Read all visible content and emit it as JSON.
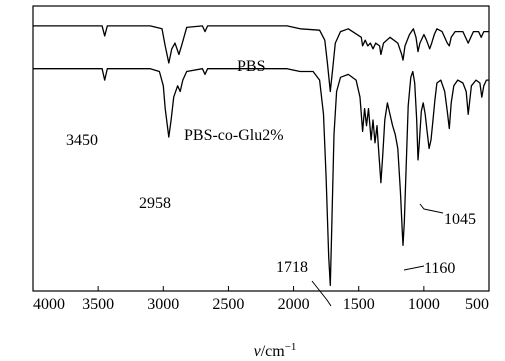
{
  "chart_data": {
    "type": "line",
    "xlabel_symbol": "ν",
    "xlabel_unit": "/cm",
    "xlabel_exponent": "−1",
    "xlim": [
      4000,
      500
    ],
    "x_reversed": true,
    "x_ticks": [
      4000,
      3500,
      3000,
      2500,
      2000,
      1500,
      1000,
      500
    ],
    "x_tick_labels": [
      "4000",
      "3500",
      "3000",
      "2500",
      "2000",
      "1500",
      "1000",
      "500"
    ],
    "ylim": [
      0,
      100
    ],
    "y_ticks_shown": false,
    "grid": false,
    "series": [
      {
        "name": "PBS",
        "points": [
          [
            4000,
            93
          ],
          [
            3650,
            93
          ],
          [
            3470,
            93
          ],
          [
            3450,
            89.5
          ],
          [
            3430,
            93
          ],
          [
            3100,
            93
          ],
          [
            3010,
            92
          ],
          [
            2985,
            86
          ],
          [
            2958,
            80
          ],
          [
            2935,
            85
          ],
          [
            2910,
            87
          ],
          [
            2880,
            83
          ],
          [
            2860,
            86
          ],
          [
            2820,
            92.5
          ],
          [
            2700,
            93
          ],
          [
            2680,
            91
          ],
          [
            2660,
            93
          ],
          [
            2050,
            93
          ],
          [
            1950,
            92
          ],
          [
            1800,
            91.5
          ],
          [
            1760,
            88
          ],
          [
            1740,
            80
          ],
          [
            1718,
            70
          ],
          [
            1700,
            78
          ],
          [
            1680,
            87
          ],
          [
            1640,
            91
          ],
          [
            1580,
            92
          ],
          [
            1480,
            89
          ],
          [
            1470,
            86
          ],
          [
            1450,
            88
          ],
          [
            1430,
            86
          ],
          [
            1410,
            87
          ],
          [
            1390,
            85
          ],
          [
            1370,
            87
          ],
          [
            1340,
            86
          ],
          [
            1330,
            83
          ],
          [
            1310,
            87
          ],
          [
            1260,
            89
          ],
          [
            1200,
            87
          ],
          [
            1170,
            83
          ],
          [
            1160,
            81
          ],
          [
            1145,
            86
          ],
          [
            1110,
            90
          ],
          [
            1080,
            92
          ],
          [
            1060,
            89
          ],
          [
            1045,
            84
          ],
          [
            1030,
            87
          ],
          [
            1000,
            90
          ],
          [
            980,
            88
          ],
          [
            955,
            85
          ],
          [
            940,
            87
          ],
          [
            920,
            90
          ],
          [
            900,
            92
          ],
          [
            860,
            91
          ],
          [
            820,
            87
          ],
          [
            805,
            86
          ],
          [
            790,
            89
          ],
          [
            760,
            91
          ],
          [
            700,
            91
          ],
          [
            660,
            87
          ],
          [
            650,
            88
          ],
          [
            620,
            91
          ],
          [
            580,
            91
          ],
          [
            560,
            89
          ],
          [
            540,
            91
          ],
          [
            500,
            91
          ]
        ]
      },
      {
        "name": "PBS-co-Glu2%",
        "points": [
          [
            4000,
            78
          ],
          [
            3650,
            78
          ],
          [
            3470,
            78
          ],
          [
            3450,
            74
          ],
          [
            3430,
            78
          ],
          [
            3100,
            78
          ],
          [
            3030,
            77
          ],
          [
            3000,
            72
          ],
          [
            2985,
            64
          ],
          [
            2958,
            54
          ],
          [
            2940,
            60
          ],
          [
            2920,
            68
          ],
          [
            2890,
            72
          ],
          [
            2870,
            70
          ],
          [
            2850,
            74
          ],
          [
            2820,
            77
          ],
          [
            2700,
            78
          ],
          [
            2680,
            76
          ],
          [
            2660,
            78
          ],
          [
            2050,
            78
          ],
          [
            1950,
            77
          ],
          [
            1850,
            77
          ],
          [
            1800,
            74
          ],
          [
            1770,
            62
          ],
          [
            1750,
            40
          ],
          [
            1730,
            12
          ],
          [
            1718,
            2
          ],
          [
            1708,
            20
          ],
          [
            1690,
            55
          ],
          [
            1670,
            70
          ],
          [
            1640,
            75
          ],
          [
            1580,
            76
          ],
          [
            1520,
            74
          ],
          [
            1490,
            68
          ],
          [
            1470,
            56
          ],
          [
            1455,
            64
          ],
          [
            1440,
            58
          ],
          [
            1425,
            64
          ],
          [
            1405,
            53
          ],
          [
            1390,
            60
          ],
          [
            1375,
            52
          ],
          [
            1360,
            58
          ],
          [
            1345,
            48
          ],
          [
            1330,
            38
          ],
          [
            1315,
            48
          ],
          [
            1300,
            60
          ],
          [
            1280,
            66
          ],
          [
            1265,
            63
          ],
          [
            1240,
            58
          ],
          [
            1220,
            55
          ],
          [
            1200,
            50
          ],
          [
            1180,
            35
          ],
          [
            1165,
            20
          ],
          [
            1160,
            16
          ],
          [
            1150,
            24
          ],
          [
            1135,
            45
          ],
          [
            1120,
            65
          ],
          [
            1100,
            75
          ],
          [
            1085,
            77
          ],
          [
            1070,
            73
          ],
          [
            1055,
            60
          ],
          [
            1045,
            46
          ],
          [
            1035,
            52
          ],
          [
            1020,
            63
          ],
          [
            1005,
            66
          ],
          [
            990,
            62
          ],
          [
            975,
            56
          ],
          [
            960,
            50
          ],
          [
            945,
            53
          ],
          [
            930,
            60
          ],
          [
            915,
            67
          ],
          [
            900,
            73
          ],
          [
            870,
            74
          ],
          [
            840,
            70
          ],
          [
            820,
            63
          ],
          [
            805,
            57
          ],
          [
            790,
            66
          ],
          [
            770,
            72
          ],
          [
            740,
            74
          ],
          [
            700,
            73
          ],
          [
            675,
            70
          ],
          [
            660,
            62
          ],
          [
            650,
            66
          ],
          [
            635,
            72
          ],
          [
            600,
            74
          ],
          [
            570,
            73
          ],
          [
            555,
            68
          ],
          [
            540,
            72
          ],
          [
            520,
            74
          ],
          [
            500,
            74
          ]
        ]
      }
    ],
    "series_labels": [
      "PBS",
      "PBS-co-Glu2%"
    ],
    "annotations": [
      "3450",
      "2958",
      "1718",
      "1160",
      "1045"
    ]
  }
}
